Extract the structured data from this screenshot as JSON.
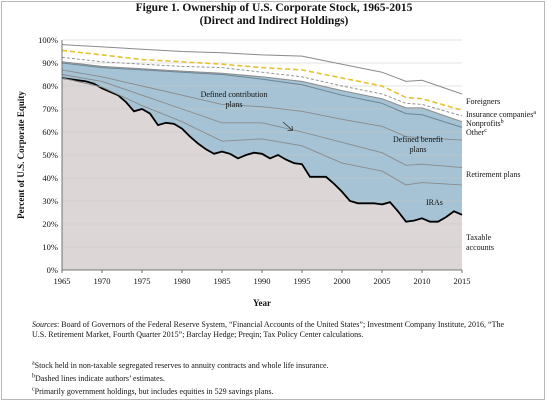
{
  "title_line1": "Figure 1. Ownership of U.S. Corporate Stock, 1965-2015",
  "title_line2": "(Direct and Indirect Holdings)",
  "chart_data": {
    "type": "area",
    "xlabel": "Year",
    "ylabel": "Percent of U.S. Corporate Equity",
    "xlim": [
      1965,
      2015
    ],
    "ylim": [
      0,
      100
    ],
    "x_ticks": [
      "1965",
      "1970",
      "1975",
      "1980",
      "1985",
      "1990",
      "1995",
      "2000",
      "2005",
      "2010",
      "2015"
    ],
    "y_ticks": [
      "0%",
      "10%",
      "20%",
      "30%",
      "40%",
      "50%",
      "60%",
      "70%",
      "80%",
      "90%",
      "100%"
    ],
    "colors": {
      "taxable": "#dcd6d7",
      "retirement": "#a5c3d4",
      "taxable_line": "#000000",
      "boundary": "#8a8a8a",
      "insurance_dash": "#e8c22e",
      "grid": "#c8c8c8"
    },
    "series": [
      {
        "label": "Taxable accounts",
        "x": [
          1965,
          1966,
          1967,
          1968,
          1969,
          1970,
          1971,
          1972,
          1973,
          1974,
          1975,
          1976,
          1977,
          1978,
          1979,
          1980,
          1981,
          1982,
          1983,
          1984,
          1985,
          1986,
          1987,
          1988,
          1989,
          1990,
          1991,
          1992,
          1993,
          1994,
          1995,
          1996,
          1997,
          1998,
          1999,
          2000,
          2001,
          2002,
          2003,
          2004,
          2005,
          2006,
          2007,
          2008,
          2009,
          2010,
          2011,
          2012,
          2013,
          2014,
          2015
        ],
        "values": [
          83.5,
          83,
          82.5,
          82,
          81,
          79,
          77.5,
          76,
          73,
          69,
          70,
          68,
          63,
          64,
          63.5,
          61.5,
          58,
          55,
          52.5,
          50.5,
          51.5,
          50.5,
          48.5,
          50,
          51,
          50.5,
          48.5,
          50,
          48,
          46.5,
          46,
          40.5,
          40.5,
          40.5,
          37.5,
          34,
          30,
          29,
          29,
          29,
          28.5,
          29.5,
          25.5,
          21,
          21.5,
          22.5,
          21,
          21,
          23,
          25.5,
          24
        ]
      },
      {
        "label": "IRAs",
        "x": [
          1965,
          1970,
          1975,
          1980,
          1985,
          1990,
          1995,
          2000,
          2005,
          2008,
          2010,
          2015
        ],
        "values": [
          83.5,
          79.5,
          71.5,
          64.5,
          56,
          57,
          54,
          46.5,
          43,
          37,
          38,
          37
        ]
      },
      {
        "label": "Retirement plans",
        "x": [
          1965,
          1970,
          1975,
          1980,
          1985,
          1990,
          1995,
          2000,
          2005,
          2008,
          2010,
          2015
        ],
        "values": [
          85,
          82,
          76,
          70,
          64,
          64,
          60,
          55.5,
          51,
          45.5,
          46,
          44.5
        ]
      },
      {
        "label": "Defined benefit plans",
        "x": [
          1965,
          1970,
          1975,
          1980,
          1985,
          1990,
          1995,
          2000,
          2005,
          2008,
          2010,
          2015
        ],
        "values": [
          87,
          84,
          80,
          76,
          72,
          71,
          69,
          65.5,
          62.5,
          58,
          57.5,
          56.5
        ]
      },
      {
        "label": "Defined contribution plans",
        "x": [
          1965,
          1970,
          1975,
          1980,
          1985,
          1990,
          1995,
          2000,
          2005,
          2008,
          2010,
          2015
        ],
        "values": [
          90,
          88,
          87,
          86,
          85,
          83,
          80.5,
          76,
          72.5,
          68,
          67.5,
          62
        ]
      },
      {
        "label": "Other",
        "x": [
          1965,
          1970,
          1975,
          1980,
          1985,
          1990,
          1995,
          2000,
          2005,
          2008,
          2010,
          2015
        ],
        "values": [
          90.5,
          88.5,
          87.5,
          86.5,
          85.5,
          84,
          82,
          78,
          74.5,
          70.5,
          70.5,
          64.5
        ]
      },
      {
        "label": "Nonprofits",
        "x": [
          1965,
          1970,
          1975,
          1980,
          1985,
          1990,
          1995,
          2000,
          2005,
          2008,
          2010,
          2015
        ],
        "values": [
          92.5,
          90.5,
          89.5,
          88.5,
          88,
          86,
          84,
          80,
          76.5,
          72.5,
          72,
          67
        ]
      },
      {
        "label": "Insurance companies",
        "x": [
          1965,
          1970,
          1975,
          1980,
          1985,
          1990,
          1995,
          2000,
          2005,
          2008,
          2010,
          2015
        ],
        "values": [
          95.5,
          93.5,
          91.5,
          90.5,
          89.5,
          88,
          87,
          83.5,
          80,
          75,
          74.5,
          69.5
        ]
      },
      {
        "label": "Foreigners",
        "x": [
          1965,
          1970,
          1975,
          1980,
          1985,
          1990,
          1995,
          2000,
          2005,
          2008,
          2010,
          2015
        ],
        "values": [
          98,
          97,
          96,
          95,
          94.5,
          93.5,
          93,
          89.5,
          86,
          82,
          82.5,
          76.5
        ]
      }
    ],
    "annotations": {
      "defined_contribution_line1": "Defined contribution",
      "defined_contribution_line2": "plans",
      "defined_benefit_line1": "Defined benefit",
      "defined_benefit_line2": "plans",
      "foreigners": "Foreigners",
      "insurance": "Insurance companies",
      "insurance_sup": "a",
      "nonprofits": "Nonprofits",
      "nonprofits_sup": "b",
      "other": "Other",
      "other_sup": "c",
      "retirement": "Retirement plans",
      "iras": "IRAs",
      "taxable_line1": "Taxable",
      "taxable_line2": "accounts"
    }
  },
  "footnotes": {
    "sources_label": "Sources",
    "sources_text": ": Board of Governors of the Federal Reserve System, “Financial Accounts of the United States”; Investment Company Institute, 2016, “The U.S. Retirement Market, Fourth Quarter 2015”; Barclay Hedge; Preqin; Tax Policy Center calculations.",
    "note_a_marker": "a",
    "note_a": "Stock held in non-taxable segregated reserves to annuity contracts and whole life insurance.",
    "note_b_marker": "b",
    "note_b": "Dashed lines indicate authors’ estimates.",
    "note_c_marker": "c",
    "note_c": "Primarily government holdings, but includes equities in 529 savings plans."
  }
}
